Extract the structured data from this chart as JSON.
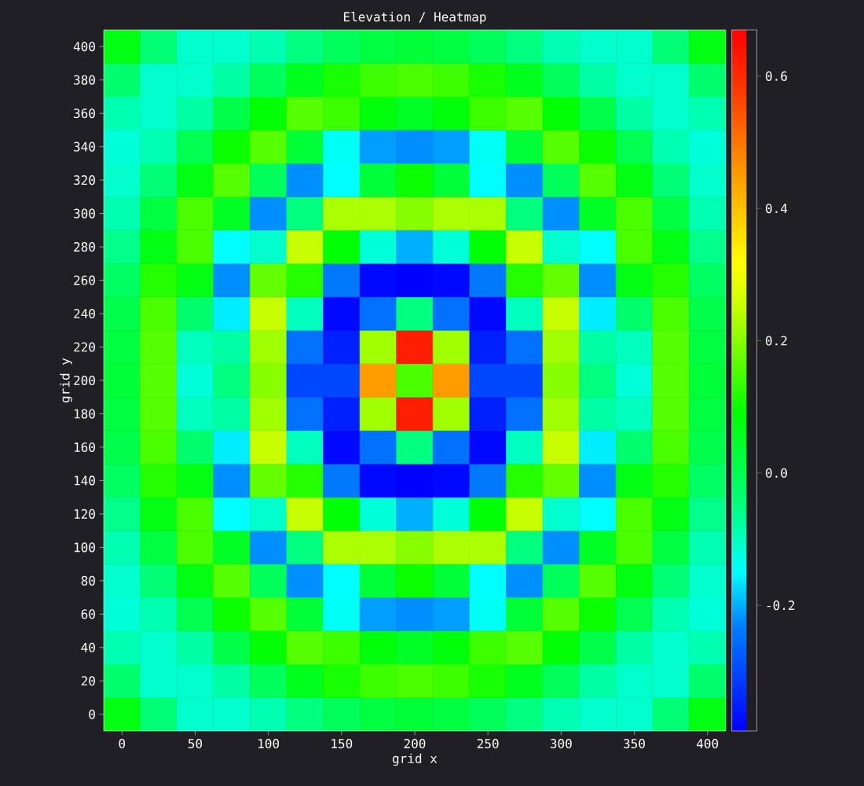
{
  "chart_data": {
    "type": "heatmap",
    "title": "Elevation / Heatmap",
    "xlabel": "grid x",
    "ylabel": "grid y",
    "categories": [
      "0",
      null,
      "50",
      null,
      "100",
      null,
      "150",
      null,
      "200",
      null,
      "250",
      null,
      "300",
      null,
      "350",
      null,
      "400"
    ],
    "y_categories": [
      "400",
      "380",
      "360",
      "340",
      "320",
      "300",
      "280",
      "260",
      "240",
      "220",
      "200",
      "180",
      "160",
      "140",
      "120",
      "100",
      "80",
      "60",
      "40",
      "20",
      "0"
    ],
    "clim": [
      -0.39,
      0.67
    ],
    "cticks": [
      {
        "value": -0.2,
        "label": "-0.2"
      },
      {
        "value": 0,
        "label": "0.0"
      },
      0.2,
      0.4,
      0.6
    ],
    "cells": [
      [
        0.07,
        -0.04,
        -0.11,
        -0.11,
        -0.09,
        -0.05,
        -0.01,
        0.02,
        0.03,
        0.02,
        -0.01,
        -0.05,
        -0.09,
        -0.11,
        -0.11,
        -0.04,
        0.07
      ],
      [
        -0.03,
        -0.11,
        -0.11,
        -0.08,
        -0.01,
        0.06,
        0.11,
        0.14,
        0.15,
        0.14,
        0.11,
        0.06,
        -0.01,
        -0.08,
        -0.11,
        -0.11,
        -0.03
      ],
      [
        -0.09,
        -0.11,
        -0.08,
        0.01,
        0.09,
        0.16,
        0.14,
        0.08,
        0.05,
        0.08,
        0.14,
        0.16,
        0.09,
        0.01,
        -0.08,
        -0.11,
        -0.09
      ],
      [
        -0.12,
        -0.09,
        0.0,
        0.1,
        0.16,
        0.03,
        -0.14,
        -0.21,
        -0.22,
        -0.21,
        -0.14,
        0.03,
        0.16,
        0.1,
        0.0,
        -0.09,
        -0.12
      ],
      [
        -0.11,
        -0.04,
        0.07,
        0.16,
        -0.01,
        -0.22,
        -0.15,
        0.03,
        0.1,
        0.03,
        -0.15,
        -0.22,
        -0.01,
        0.16,
        0.07,
        -0.04,
        -0.11
      ],
      [
        -0.09,
        0.02,
        0.15,
        0.05,
        -0.22,
        -0.05,
        0.23,
        0.23,
        0.2,
        0.23,
        0.23,
        -0.05,
        -0.22,
        0.05,
        0.15,
        0.02,
        -0.09
      ],
      [
        -0.06,
        0.07,
        0.15,
        -0.15,
        -0.11,
        0.25,
        0.09,
        -0.12,
        -0.2,
        -0.12,
        0.09,
        0.25,
        -0.11,
        -0.15,
        0.15,
        0.07,
        -0.06
      ],
      [
        -0.02,
        0.12,
        0.07,
        -0.22,
        0.17,
        0.12,
        -0.24,
        -0.38,
        -0.39,
        -0.38,
        -0.24,
        0.12,
        0.17,
        -0.22,
        0.07,
        0.12,
        -0.02
      ],
      [
        0.01,
        0.15,
        -0.03,
        -0.16,
        0.25,
        -0.1,
        -0.38,
        -0.25,
        -0.05,
        -0.25,
        -0.38,
        -0.1,
        0.25,
        -0.16,
        -0.03,
        0.15,
        0.01
      ],
      [
        0.02,
        0.16,
        -0.1,
        -0.08,
        0.22,
        -0.25,
        -0.35,
        0.22,
        0.62,
        0.22,
        -0.35,
        -0.25,
        0.22,
        -0.08,
        -0.1,
        0.16,
        0.02
      ],
      [
        0.03,
        0.16,
        -0.12,
        -0.05,
        0.2,
        -0.3,
        -0.3,
        0.45,
        0.15,
        0.45,
        -0.3,
        -0.3,
        0.2,
        -0.05,
        -0.12,
        0.16,
        0.03
      ],
      [
        0.02,
        0.16,
        -0.1,
        -0.08,
        0.22,
        -0.25,
        -0.35,
        0.22,
        0.62,
        0.22,
        -0.35,
        -0.25,
        0.22,
        -0.08,
        -0.1,
        0.16,
        0.02
      ],
      [
        0.01,
        0.15,
        -0.03,
        -0.16,
        0.25,
        -0.1,
        -0.38,
        -0.25,
        -0.05,
        -0.25,
        -0.38,
        -0.1,
        0.25,
        -0.16,
        -0.03,
        0.15,
        0.01
      ],
      [
        -0.02,
        0.12,
        0.07,
        -0.22,
        0.17,
        0.12,
        -0.24,
        -0.38,
        -0.39,
        -0.38,
        -0.24,
        0.12,
        0.17,
        -0.22,
        0.07,
        0.12,
        -0.02
      ],
      [
        -0.06,
        0.07,
        0.15,
        -0.15,
        -0.11,
        0.25,
        0.09,
        -0.12,
        -0.2,
        -0.12,
        0.09,
        0.25,
        -0.11,
        -0.15,
        0.15,
        0.07,
        -0.06
      ],
      [
        -0.09,
        0.02,
        0.15,
        0.05,
        -0.22,
        -0.05,
        0.23,
        0.23,
        0.2,
        0.23,
        0.23,
        -0.05,
        -0.22,
        0.05,
        0.15,
        0.02,
        -0.09
      ],
      [
        -0.11,
        -0.04,
        0.07,
        0.16,
        -0.01,
        -0.22,
        -0.15,
        0.03,
        0.1,
        0.03,
        -0.15,
        -0.22,
        -0.01,
        0.16,
        0.07,
        -0.04,
        -0.11
      ],
      [
        -0.12,
        -0.09,
        0.0,
        0.1,
        0.16,
        0.03,
        -0.14,
        -0.21,
        -0.22,
        -0.21,
        -0.14,
        0.03,
        0.16,
        0.1,
        0.0,
        -0.09,
        -0.12
      ],
      [
        -0.09,
        -0.11,
        -0.08,
        0.01,
        0.09,
        0.16,
        0.14,
        0.08,
        0.05,
        0.08,
        0.14,
        0.16,
        0.09,
        0.01,
        -0.08,
        -0.11,
        -0.09
      ],
      [
        -0.03,
        -0.11,
        -0.11,
        -0.08,
        -0.01,
        0.06,
        0.11,
        0.14,
        0.15,
        0.14,
        0.11,
        0.06,
        -0.01,
        -0.08,
        -0.11,
        -0.11,
        -0.03
      ],
      [
        0.07,
        -0.04,
        -0.11,
        -0.11,
        -0.09,
        -0.05,
        -0.01,
        0.02,
        0.03,
        0.02,
        -0.01,
        -0.05,
        -0.09,
        -0.11,
        -0.11,
        -0.04,
        0.07
      ]
    ]
  }
}
